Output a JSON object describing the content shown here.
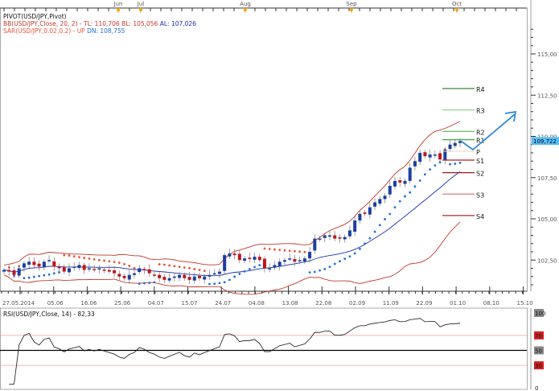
{
  "legend": {
    "pivot": "PIVOT(USD/JPY,Pivot)",
    "bb": "BB(USD/JPY,Close, 20, 2) -",
    "bb_tl": "TL: 110,706",
    "bb_bl": "BL: 105,056",
    "bb_al": "AL: 107,026",
    "sar": "SAR(USD/JPY,0.02,0.2) -",
    "sar_up": "UP",
    "sar_dn": "DN: 108,755",
    "rsi": "RSI(USD/JPY,Close, 14) - 82,33"
  },
  "colors": {
    "bull": "#1a3fa0",
    "bear": "#c0161b",
    "bb": "#c0392b",
    "sar_up": "#1f6fd6",
    "sar_dn": "#e8553a",
    "ma": "#1a2fb0",
    "arrow": "#2a8ad4",
    "last_price_bg": "#5bc0f0"
  },
  "chart_data": {
    "type": "candlestick",
    "instrument": "USD/JPY",
    "months": [
      "Jun",
      "Jul",
      "Aug",
      "Sep",
      "Oct"
    ],
    "date_ticks": [
      "27.05.2014",
      "05.06",
      "16.06",
      "25.06",
      "04.07",
      "15.07",
      "24.07",
      "04.08",
      "13.08",
      "22.08",
      "02.09",
      "11.09",
      "22.09",
      "01.10",
      "08.10",
      "15.10"
    ],
    "price_ticks": [
      "115,00",
      "112,50",
      "110,00",
      "107,50",
      "105,00",
      "102,50"
    ],
    "price_ylim": [
      100.3,
      116.2
    ],
    "last_price": "109,722",
    "closes": [
      101.9,
      101.8,
      101.6,
      102.0,
      102.3,
      102.4,
      102.2,
      102.1,
      102.4,
      102.5,
      102.1,
      102.0,
      101.8,
      102.0,
      102.1,
      102.2,
      101.9,
      102.0,
      101.9,
      102.0,
      101.9,
      101.8,
      101.7,
      101.5,
      101.4,
      101.6,
      101.7,
      102.0,
      101.9,
      101.7,
      101.6,
      101.4,
      101.3,
      101.4,
      101.5,
      101.6,
      101.4,
      101.3,
      101.5,
      101.4,
      101.5,
      101.6,
      101.7,
      101.8,
      102.8,
      102.9,
      102.8,
      102.5,
      102.6,
      102.6,
      102.7,
      102.5,
      102.0,
      102.0,
      102.2,
      102.4,
      102.5,
      102.6,
      102.4,
      102.5,
      102.6,
      103.0,
      103.8,
      103.8,
      104.0,
      104.0,
      103.8,
      103.8,
      103.9,
      104.3,
      104.9,
      105.3,
      105.3,
      105.7,
      106.0,
      106.2,
      106.4,
      107.0,
      107.3,
      107.2,
      107.3,
      108.1,
      108.5,
      109.0,
      108.8,
      108.9,
      108.9,
      108.6,
      109.2,
      109.5,
      109.6,
      109.72
    ],
    "pivots": [
      {
        "label": "R4",
        "value": 112.9,
        "color": "#1e7a1e"
      },
      {
        "label": "R3",
        "value": 111.6,
        "color": "#7fd07f"
      },
      {
        "label": "R2",
        "value": 110.3,
        "color": "#5cc25c"
      },
      {
        "label": "R1",
        "value": 109.8,
        "color": "#3fae3f"
      },
      {
        "label": "P",
        "value": 109.1,
        "color": "#e8dcc0"
      },
      {
        "label": "S1",
        "value": 108.56,
        "color": "#b22222"
      },
      {
        "label": "S2",
        "value": 107.8,
        "color": "#9b1c1c"
      },
      {
        "label": "S3",
        "value": 106.5,
        "color": "#d88080"
      },
      {
        "label": "S4",
        "value": 105.2,
        "color": "#a52a2a"
      }
    ],
    "rsi": {
      "period": 14,
      "value": 82.33,
      "ticks": [
        "100",
        "70",
        "50",
        "30",
        "0"
      ],
      "levels": [
        70,
        50,
        30
      ]
    }
  }
}
